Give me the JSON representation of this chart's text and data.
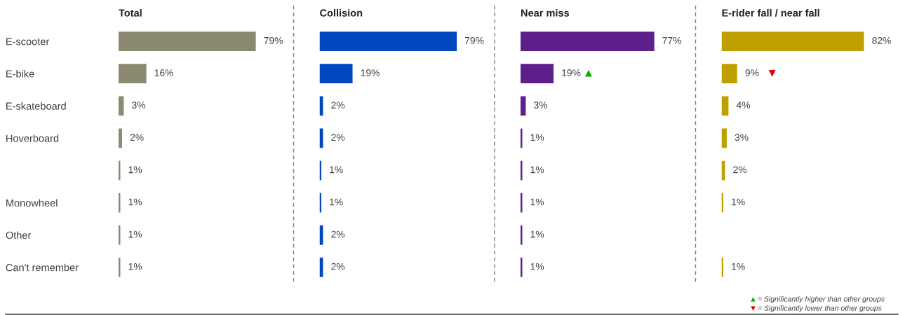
{
  "chart_data": [
    {
      "type": "bar",
      "orientation": "horizontal",
      "title": "Total",
      "tick_labels": "y",
      "grid": false,
      "legend": false,
      "categories": [
        "E-scooter",
        "E-bike",
        "E-skateboard",
        "Hoverboard",
        null,
        "Monowheel",
        "Other",
        "Can't remember"
      ],
      "values": [
        79,
        16,
        3,
        2,
        1,
        1,
        1,
        1
      ],
      "color": "#8b8970",
      "value_labels": [
        "79%",
        "16%",
        "3%",
        "2%",
        "1%",
        "1%",
        "1%",
        "1%"
      ]
    },
    {
      "type": "bar",
      "orientation": "horizontal",
      "title": "Collision",
      "tick_labels": false,
      "grid": false,
      "legend": false,
      "categories": [
        "E-scooter",
        "E-bike",
        "E-skateboard",
        "Hoverboard",
        null,
        "Monowheel",
        "Other",
        "Can't remember"
      ],
      "values": [
        79,
        19,
        2,
        2,
        1,
        1,
        2,
        2
      ],
      "color": "#0047c0",
      "value_labels": [
        "79%",
        "19%",
        "2%",
        "2%",
        "1%",
        "1%",
        "2%",
        "2%"
      ]
    },
    {
      "type": "bar",
      "orientation": "horizontal",
      "title": "Near miss",
      "tick_labels": false,
      "grid": false,
      "legend": false,
      "categories": [
        "E-scooter",
        "E-bike",
        "E-skateboard",
        "Hoverboard",
        null,
        "Monowheel",
        "Other",
        "Can't remember"
      ],
      "values": [
        77,
        19,
        3,
        1,
        1,
        1,
        1,
        1
      ],
      "color": "#5e1f8a",
      "value_labels": [
        "77%",
        "19%",
        "3%",
        "1%",
        "1%",
        "1%",
        "1%",
        "1%"
      ],
      "annotations": [
        {
          "text": "▲",
          "x": 19,
          "y": "E-bike"
        }
      ]
    },
    {
      "type": "bar",
      "orientation": "horizontal",
      "title": "E-rider fall / near fall",
      "tick_labels": false,
      "grid": false,
      "legend": false,
      "categories": [
        "E-scooter",
        "E-bike",
        "E-skateboard",
        "Hoverboard",
        null,
        "Monowheel",
        "Other",
        "Can't remember"
      ],
      "values": [
        82,
        9,
        4,
        3,
        2,
        1,
        null,
        1
      ],
      "color": "#c0a000",
      "value_labels": [
        "82%",
        "9%",
        "4%",
        "3%",
        "2%",
        "1%",
        null,
        "1%"
      ],
      "annotations": [
        {
          "text": "▼",
          "x": 9,
          "y": "E-bike"
        },
        "▲ = Significantly higher than other groups",
        "▼ = Significantly lower than other groups"
      ]
    }
  ]
}
